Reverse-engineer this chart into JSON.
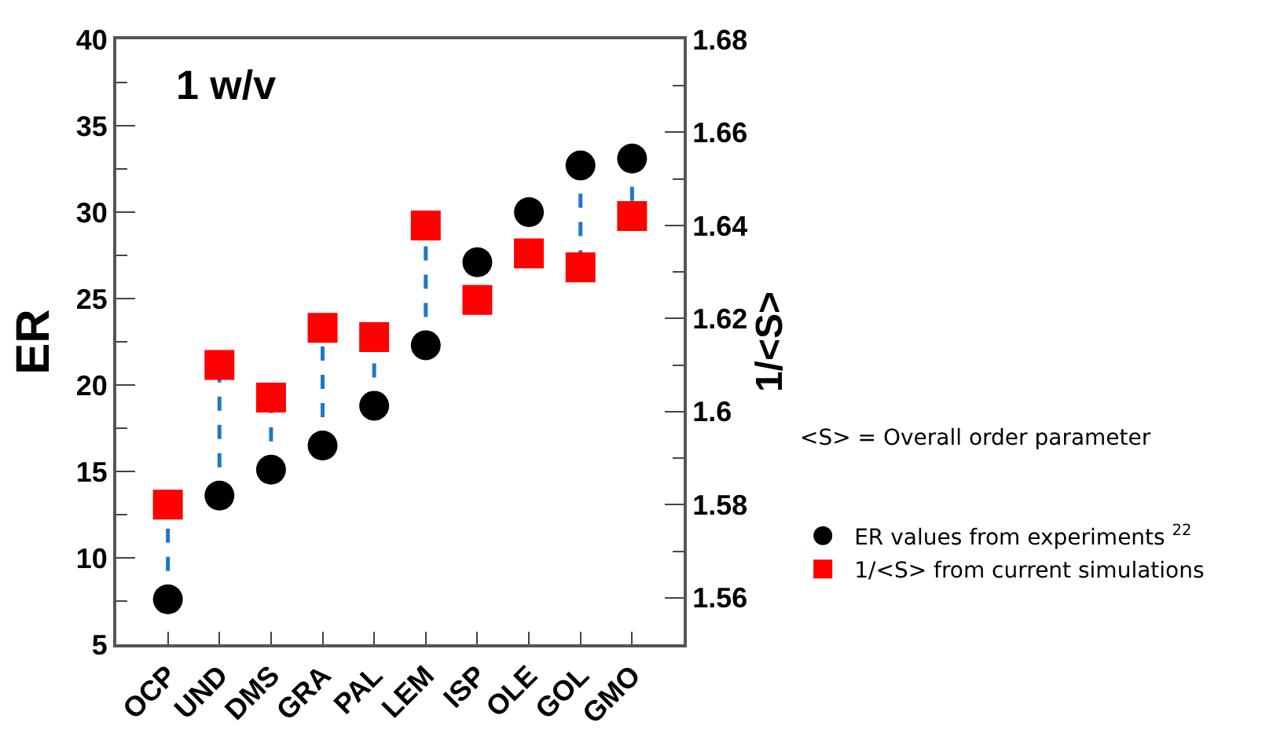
{
  "chart_data": {
    "type": "scatter",
    "ylabel": "ER",
    "y2label": "1/<S>",
    "categories": [
      "OCP",
      "UND",
      "DMS",
      "GRA",
      "PAL",
      "LEM",
      "ISP",
      "OLE",
      "GOL",
      "GMO"
    ],
    "series": [
      {
        "name": "ER values from experiments $^{22}$",
        "color": "#000000",
        "marker": "circle",
        "values": [
          7.6,
          13.6,
          15.1,
          16.5,
          18.8,
          22.3,
          27.1,
          30.0,
          32.7,
          33.1
        ]
      },
      {
        "name": "1/<S> from current simulations",
        "color": "#ff0000",
        "marker": "square",
        "axis": "y2",
        "values": [
          1.58,
          1.61,
          1.603,
          1.618,
          1.616,
          1.64,
          1.624,
          1.634,
          1.631,
          1.642
        ]
      }
    ],
    "ylim": [
      5,
      40
    ],
    "yticks": [
      5,
      10,
      15,
      20,
      25,
      30,
      35,
      40
    ],
    "y2lim": [
      1.55,
      1.68
    ],
    "y2ticks": [
      {
        "value": 1.56,
        "label": "1.56"
      },
      {
        "value": 1.58,
        "label": "1.58"
      },
      {
        "value": 1.6,
        "label": "1.6"
      },
      {
        "value": 1.62,
        "label": "1.62"
      },
      {
        "value": 1.64,
        "label": "1.64"
      },
      {
        "value": 1.66,
        "label": "1.66"
      },
      {
        "value": 1.68,
        "label": "1.68"
      }
    ],
    "line_style": "dashed",
    "legend": "right",
    "annotations": [
      "1 w/v",
      "<S> = Overall order parameter"
    ]
  }
}
